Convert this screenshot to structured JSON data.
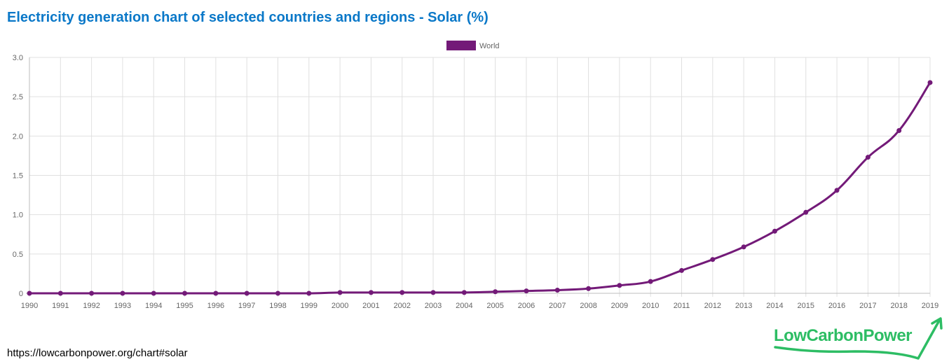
{
  "title": "Electricity generation chart of selected countries and regions - Solar (%)",
  "footer_url": "https://lowcarbonpower.org/chart#solar",
  "logo_text": "LowCarbonPower",
  "colors": {
    "title": "#0a78c8",
    "series": "#731a78",
    "logo": "#2dbd64",
    "grid": "#e0e0e0",
    "axis_text": "#666666"
  },
  "chart_data": {
    "type": "line",
    "title": "Electricity generation chart of selected countries and regions - Solar (%)",
    "xlabel": "",
    "ylabel": "",
    "x": [
      1990,
      1991,
      1992,
      1993,
      1994,
      1995,
      1996,
      1997,
      1998,
      1999,
      2000,
      2001,
      2002,
      2003,
      2004,
      2005,
      2006,
      2007,
      2008,
      2009,
      2010,
      2011,
      2012,
      2013,
      2014,
      2015,
      2016,
      2017,
      2018,
      2019
    ],
    "series": [
      {
        "name": "World",
        "values": [
          0,
          0,
          0,
          0,
          0,
          0,
          0,
          0,
          0,
          0,
          0.01,
          0.01,
          0.01,
          0.01,
          0.01,
          0.02,
          0.03,
          0.04,
          0.06,
          0.1,
          0.15,
          0.29,
          0.43,
          0.59,
          0.79,
          1.03,
          1.31,
          1.73,
          2.07,
          2.68
        ]
      }
    ],
    "ylim": [
      0,
      3.0
    ],
    "yticks": [
      "0",
      "0.5",
      "1.0",
      "1.5",
      "2.0",
      "2.5",
      "3.0"
    ],
    "grid": true,
    "legend_position": "top-center"
  }
}
